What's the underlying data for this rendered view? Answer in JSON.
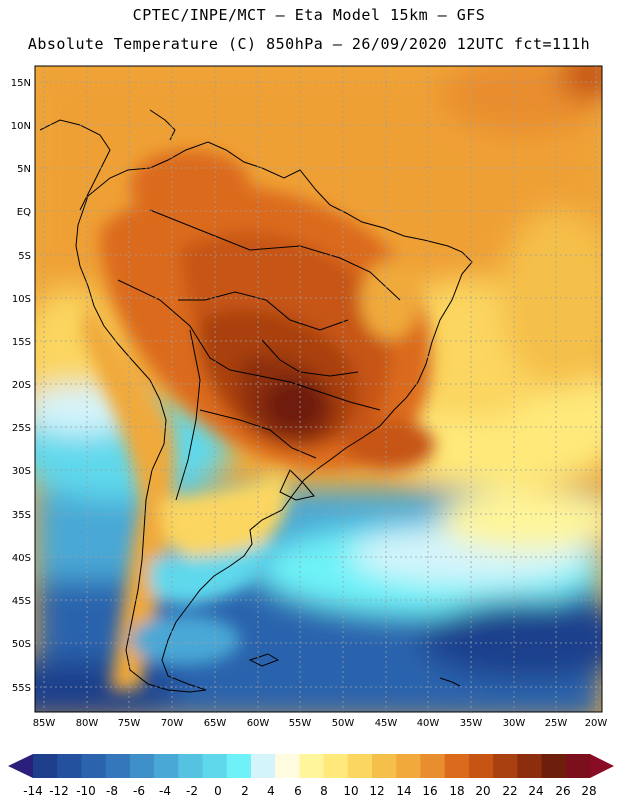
{
  "header": {
    "line1": "CPTEC/INPE/MCT –  Eta Model 15km – GFS",
    "line2": "Absolute Temperature (C) 850hPa – 26/09/2020 12UTC fct=111h"
  },
  "axes": {
    "lat_labels": [
      "15N",
      "10N",
      "5N",
      "EQ",
      "5S",
      "10S",
      "15S",
      "20S",
      "25S",
      "30S",
      "35S",
      "40S",
      "45S",
      "50S",
      "55S"
    ],
    "lon_labels": [
      "85W",
      "80W",
      "75W",
      "70W",
      "65W",
      "60W",
      "55W",
      "50W",
      "45W",
      "40W",
      "35W",
      "30W",
      "25W",
      "20W"
    ],
    "grid": "dotted"
  },
  "colorbar": {
    "labels": [
      "-14",
      "-12",
      "-10",
      "-8",
      "-6",
      "-4",
      "-2",
      "0",
      "2",
      "4",
      "6",
      "8",
      "10",
      "12",
      "14",
      "16",
      "18",
      "20",
      "22",
      "24",
      "26",
      "28"
    ],
    "colors": [
      "#1e3f8c",
      "#24519e",
      "#2b63ad",
      "#3478bb",
      "#3f8fc8",
      "#4aa8d6",
      "#55c2e2",
      "#5fd8ec",
      "#6ef2f8",
      "#d4f4fb",
      "#fffbe0",
      "#fff59a",
      "#fee97a",
      "#fbd660",
      "#f5c04a",
      "#f0a93a",
      "#e98e2e",
      "#db6a1c",
      "#c65513",
      "#a9400f",
      "#8c2e0d",
      "#6e1f0c",
      "#7b0f1c"
    ],
    "under_color": "#2a1f7a",
    "over_color": "#8a0b25"
  }
}
